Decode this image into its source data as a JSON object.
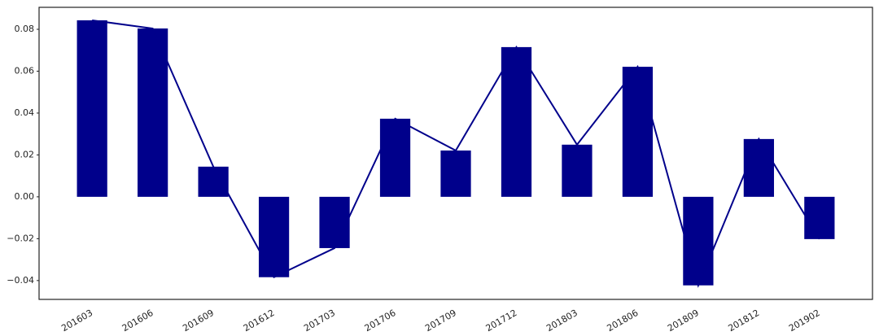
{
  "chart_data": {
    "type": "bar",
    "line": true,
    "color": "#00008b",
    "categories": [
      "201603",
      "201606",
      "201609",
      "201612",
      "201703",
      "201706",
      "201709",
      "201712",
      "201803",
      "201806",
      "201809",
      "201812",
      "201902"
    ],
    "values": [
      0.0843,
      0.0804,
      0.0144,
      -0.0384,
      -0.0245,
      0.0373,
      0.0221,
      0.0715,
      0.0249,
      0.0621,
      -0.0423,
      0.0276,
      -0.0202
    ],
    "ylim": [
      -0.049,
      0.0905
    ],
    "yticks": [
      {
        "value": -0.04,
        "label": "−0.04"
      },
      {
        "value": -0.02,
        "label": "−0.02"
      },
      {
        "value": 0,
        "label": "0.00"
      },
      0.02,
      0.04,
      0.06,
      0.08
    ],
    "grid": false
  }
}
